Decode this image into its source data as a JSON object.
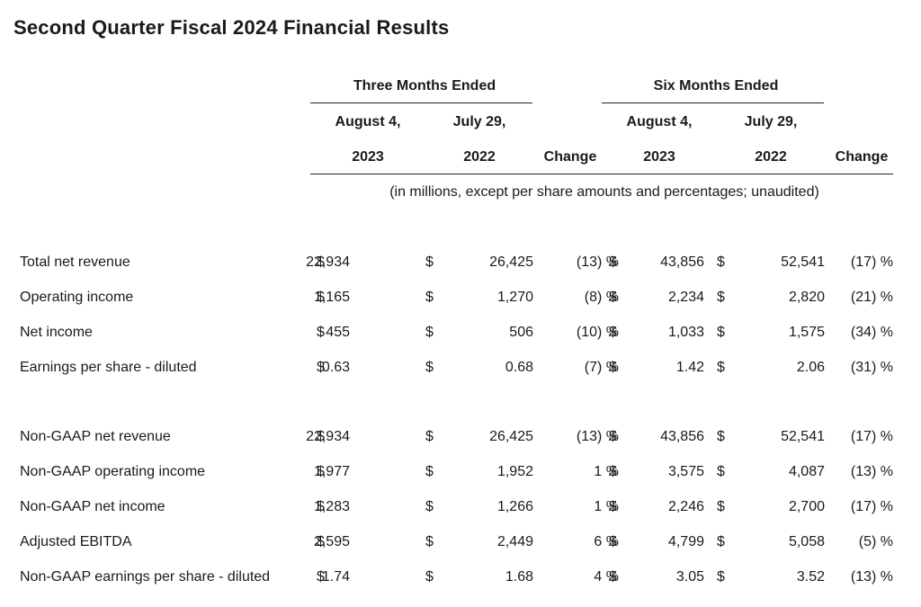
{
  "title": "Second Quarter Fiscal 2024 Financial Results",
  "headers": {
    "three_months": "Three Months Ended",
    "six_months": "Six Months Ended",
    "aug4": "August 4,",
    "jul29": "July 29,",
    "y2023": "2023",
    "y2022": "2022",
    "change": "Change",
    "note": "(in millions, except per share amounts and percentages; unaudited)"
  },
  "currency_symbol": "$",
  "rows": [
    {
      "label": "Total net revenue",
      "q23": "22,934",
      "q22": "26,425",
      "qchg": "(13) %",
      "s23": "43,856",
      "s22": "52,541",
      "schg": "(17) %"
    },
    {
      "label": "Operating income",
      "q23": "1,165",
      "q22": "1,270",
      "qchg": "(8) %",
      "s23": "2,234",
      "s22": "2,820",
      "schg": "(21) %"
    },
    {
      "label": "Net income",
      "q23": "455",
      "q22": "506",
      "qchg": "(10) %",
      "s23": "1,033",
      "s22": "1,575",
      "schg": "(34) %"
    },
    {
      "label": "Earnings per share - diluted",
      "q23": "0.63",
      "q22": "0.68",
      "qchg": "(7) %",
      "s23": "1.42",
      "s22": "2.06",
      "schg": "(31) %"
    },
    {
      "label": "Non-GAAP net revenue",
      "q23": "22,934",
      "q22": "26,425",
      "qchg": "(13) %",
      "s23": "43,856",
      "s22": "52,541",
      "schg": "(17) %"
    },
    {
      "label": "Non-GAAP operating income",
      "q23": "1,977",
      "q22": "1,952",
      "qchg": "1 %",
      "s23": "3,575",
      "s22": "4,087",
      "schg": "(13) %"
    },
    {
      "label": "Non-GAAP net income",
      "q23": "1,283",
      "q22": "1,266",
      "qchg": "1 %",
      "s23": "2,246",
      "s22": "2,700",
      "schg": "(17) %"
    },
    {
      "label": "Adjusted EBITDA",
      "q23": "2,595",
      "q22": "2,449",
      "qchg": "6 %",
      "s23": "4,799",
      "s22": "5,058",
      "schg": "(5) %"
    },
    {
      "label": "Non-GAAP earnings per share - diluted",
      "q23": "1.74",
      "q22": "1.68",
      "qchg": "4 %",
      "s23": "3.05",
      "s22": "3.52",
      "schg": "(13) %"
    }
  ]
}
